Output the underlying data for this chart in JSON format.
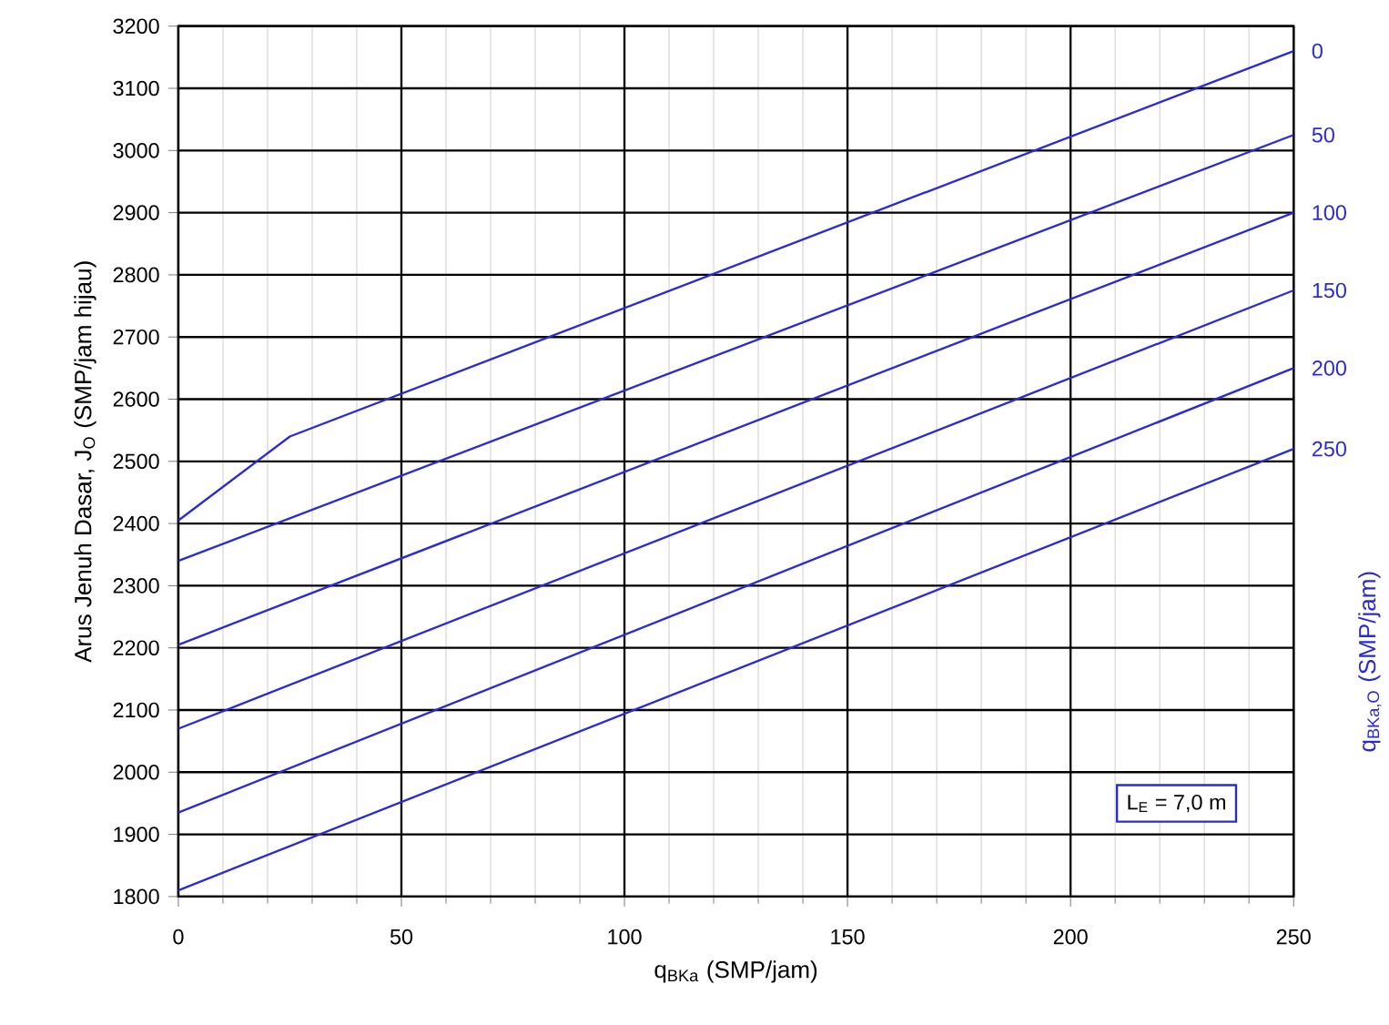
{
  "chart_data": {
    "type": "line",
    "xlabel": "q$_{BKa}$ (SMP/jam)",
    "ylabel": "Arus Jenuh Dasar, J$_{O}$ (SMP/jam hijau)",
    "y2label": "q$_{BKa,O}$ (SMP/jam)",
    "annotations": [
      "L$_{E}$ = 7,0 m"
    ],
    "xlim": [
      0,
      250
    ],
    "ylim": [
      1800,
      3200
    ],
    "xticks": [
      0,
      {
        "value": 10,
        "label": null
      },
      {
        "value": 20,
        "label": null
      },
      {
        "value": 30,
        "label": null
      },
      {
        "value": 40,
        "label": null
      },
      50,
      {
        "value": 60,
        "label": null
      },
      {
        "value": 70,
        "label": null
      },
      {
        "value": 80,
        "label": null
      },
      {
        "value": 90,
        "label": null
      },
      100,
      {
        "value": 110,
        "label": null
      },
      {
        "value": 120,
        "label": null
      },
      {
        "value": 130,
        "label": null
      },
      {
        "value": 140,
        "label": null
      },
      150,
      {
        "value": 160,
        "label": null
      },
      {
        "value": 170,
        "label": null
      },
      {
        "value": 180,
        "label": null
      },
      {
        "value": 190,
        "label": null
      },
      200,
      {
        "value": 210,
        "label": null
      },
      {
        "value": 220,
        "label": null
      },
      {
        "value": 230,
        "label": null
      },
      {
        "value": 240,
        "label": null
      },
      250
    ],
    "yticks": [
      1800,
      1900,
      2000,
      2100,
      2200,
      2300,
      2400,
      2500,
      2600,
      2700,
      2800,
      2900,
      3000,
      3100,
      3200
    ],
    "grid": true,
    "legend": false,
    "marker": "none",
    "line_style": "solid",
    "series": [
      {
        "name": "0",
        "color": "#2a2ad8",
        "x": [
          0,
          25,
          250
        ],
        "values": [
          2405,
          2540,
          3160
        ]
      },
      {
        "name": "50",
        "color": "#2a2ad8",
        "x": [
          0,
          250
        ],
        "values": [
          2340,
          3025
        ]
      },
      {
        "name": "100",
        "color": "#2a2ad8",
        "x": [
          0,
          250
        ],
        "values": [
          2205,
          2900
        ]
      },
      {
        "name": "150",
        "color": "#2a2ad8",
        "x": [
          0,
          250
        ],
        "values": [
          2070,
          2775
        ]
      },
      {
        "name": "200",
        "color": "#2a2ad8",
        "x": [
          0,
          250
        ],
        "values": [
          1935,
          2650
        ]
      },
      {
        "name": "250",
        "color": "#2a2ad8",
        "x": [
          0,
          250
        ],
        "values": [
          1810,
          2520
        ]
      }
    ]
  }
}
